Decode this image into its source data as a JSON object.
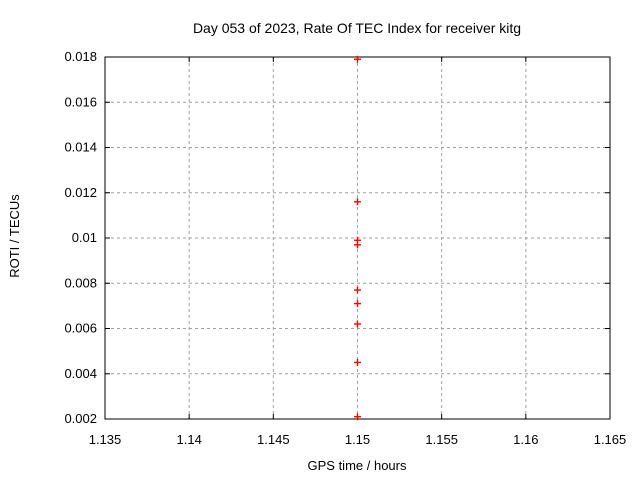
{
  "chart_data": {
    "type": "scatter",
    "title": "Day 053 of 2023, Rate Of TEC Index for receiver kitg",
    "xlabel": "GPS time / hours",
    "ylabel": "ROTI / TECUs",
    "xlim": [
      1.135,
      1.165
    ],
    "ylim": [
      0.002,
      0.018
    ],
    "xtick_values": [
      1.135,
      1.14,
      1.145,
      1.15,
      1.155,
      1.16,
      1.165
    ],
    "xtick_labels": [
      "1.135",
      "1.14",
      "1.145",
      "1.15",
      "1.155",
      "1.16",
      "1.165"
    ],
    "ytick_values": [
      0.002,
      0.004,
      0.006,
      0.008,
      0.01,
      0.012,
      0.014,
      0.016,
      0.018
    ],
    "ytick_labels": [
      "0.002",
      "0.004",
      "0.006",
      "0.008",
      "0.01",
      "0.012",
      "0.014",
      "0.016",
      "0.018"
    ],
    "grid": true,
    "legend": "none",
    "marker": "plus",
    "marker_color": "#ff0000",
    "grid_color": "#a0a0a0",
    "axis_color": "#000000",
    "background": "#ffffff",
    "series": [
      {
        "name": "ROTI",
        "x": [
          1.15,
          1.15,
          1.15,
          1.15,
          1.15,
          1.15,
          1.15,
          1.15,
          1.15
        ],
        "y": [
          0.0179,
          0.0116,
          0.0099,
          0.0097,
          0.0077,
          0.0071,
          0.0062,
          0.0045,
          0.0021
        ]
      }
    ]
  }
}
